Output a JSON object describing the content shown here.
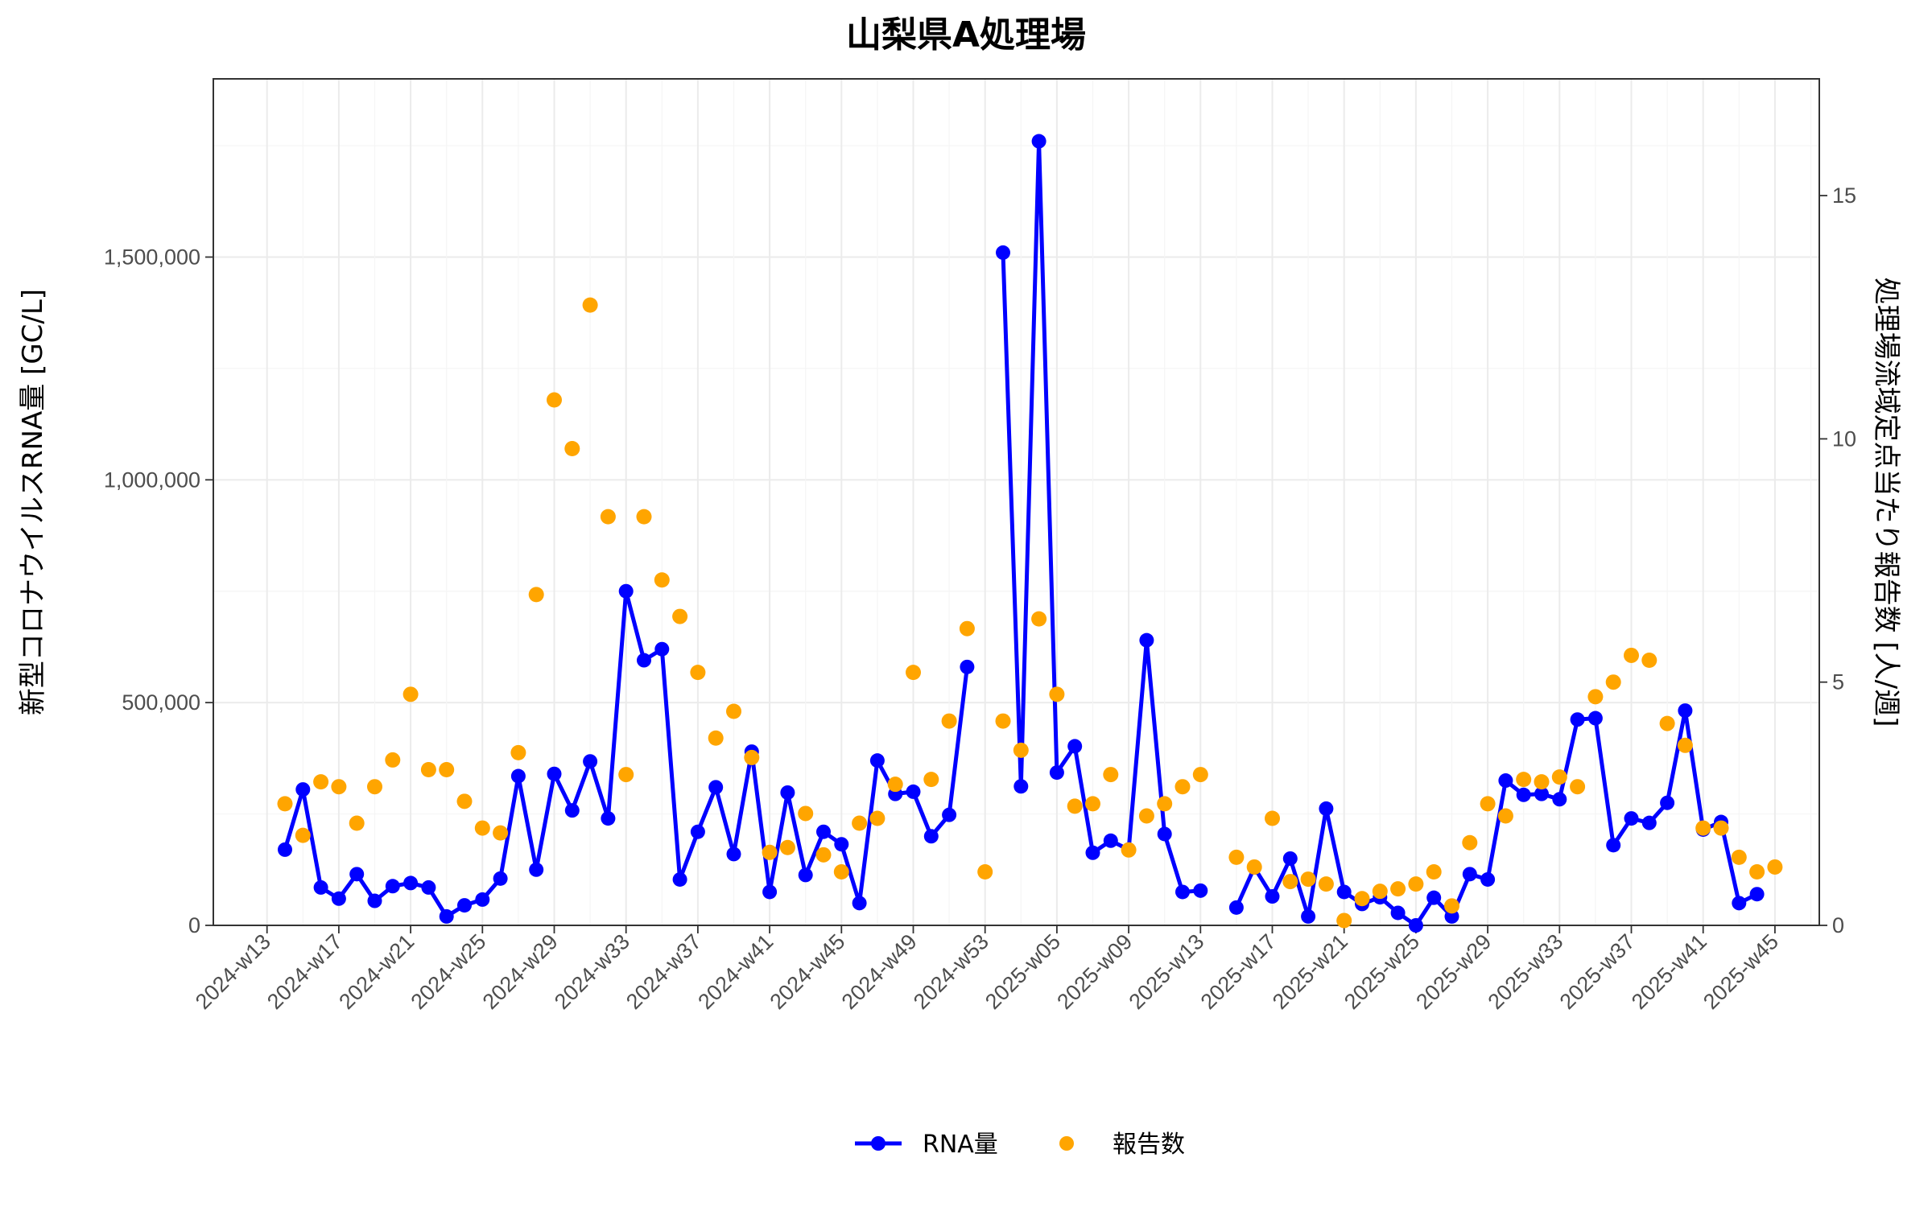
{
  "chart_data": {
    "type": "line",
    "title": "山梨県A処理場",
    "ylabel": "新型コロナウイルスRNA量 [GC/L]",
    "y2label": "処理場流域定点当たり報告数 [人/週]",
    "ylim": [
      0,
      1900000
    ],
    "y2lim": [
      0,
      17.4
    ],
    "y_ticks": [
      0,
      500000,
      1000000,
      1500000
    ],
    "y_tick_labels": [
      "0",
      "500,000",
      "1,000,000",
      "1,500,000"
    ],
    "y2_ticks": [
      0,
      5,
      10,
      15
    ],
    "y2_tick_labels": [
      "0",
      "5",
      "10",
      "15"
    ],
    "x_tick_labels": [
      "2024-w13",
      "2024-w17",
      "2024-w21",
      "2024-w25",
      "2024-w29",
      "2024-w33",
      "2024-w37",
      "2024-w41",
      "2024-w45",
      "2024-w49",
      "2024-w53",
      "2025-w05",
      "2025-w09",
      "2025-w13",
      "2025-w17",
      "2025-w21",
      "2025-w25",
      "2025-w29",
      "2025-w33",
      "2025-w37",
      "2025-w41",
      "2025-w45"
    ],
    "grid": true,
    "legend_position": "bottom",
    "categories": [
      "2024-w14",
      "2024-w15",
      "2024-w16",
      "2024-w17",
      "2024-w18",
      "2024-w19",
      "2024-w20",
      "2024-w21",
      "2024-w22",
      "2024-w23",
      "2024-w24",
      "2024-w25",
      "2024-w26",
      "2024-w27",
      "2024-w28",
      "2024-w29",
      "2024-w30",
      "2024-w31",
      "2024-w32",
      "2024-w33",
      "2024-w34",
      "2024-w35",
      "2024-w36",
      "2024-w37",
      "2024-w38",
      "2024-w39",
      "2024-w40",
      "2024-w41",
      "2024-w42",
      "2024-w43",
      "2024-w44",
      "2024-w45",
      "2024-w46",
      "2024-w47",
      "2024-w48",
      "2024-w49",
      "2024-w50",
      "2024-w51",
      "2024-w52",
      "2024-w53",
      "2025-w01",
      "2025-w02",
      "2025-w03",
      "2025-w04",
      "2025-w05",
      "2025-w06",
      "2025-w07",
      "2025-w08",
      "2025-w09",
      "2025-w10",
      "2025-w11",
      "2025-w12",
      "2025-w13",
      "2025-w14",
      "2025-w15",
      "2025-w16",
      "2025-w17",
      "2025-w18",
      "2025-w19",
      "2025-w20",
      "2025-w21",
      "2025-w22",
      "2025-w23",
      "2025-w24",
      "2025-w25",
      "2025-w26",
      "2025-w27",
      "2025-w28",
      "2025-w29",
      "2025-w30",
      "2025-w31",
      "2025-w32",
      "2025-w33",
      "2025-w34",
      "2025-w35",
      "2025-w36",
      "2025-w37",
      "2025-w38",
      "2025-w39",
      "2025-w40",
      "2025-w41",
      "2025-w42",
      "2025-w43",
      "2025-w44"
    ],
    "series": [
      {
        "name": "RNA量",
        "axis": "left",
        "color": "#0000ff",
        "values": [
          170000,
          305000,
          85000,
          60000,
          115000,
          55000,
          88000,
          95000,
          85000,
          20000,
          45000,
          58000,
          105000,
          335000,
          125000,
          340000,
          258000,
          368000,
          240000,
          750000,
          595000,
          620000,
          103000,
          210000,
          310000,
          160000,
          390000,
          75000,
          298000,
          113000,
          210000,
          182000,
          50000,
          370000,
          295000,
          300000,
          200000,
          248000,
          580000,
          null,
          1510000,
          312000,
          1760000,
          343000,
          402000,
          163000,
          190000,
          170000,
          640000,
          205000,
          75000,
          78000,
          null,
          40000,
          130000,
          65000,
          150000,
          20000,
          262000,
          75000,
          48000,
          63000,
          28000,
          0,
          62000,
          20000,
          115000,
          103000,
          325000,
          293000,
          295000,
          283000,
          462000,
          465000,
          180000,
          240000,
          230000,
          275000,
          482000,
          215000,
          232000,
          50000,
          70000,
          null
        ]
      },
      {
        "name": "報告数",
        "axis": "right",
        "color": "#ffa500",
        "values": [
          2.5,
          1.85,
          2.95,
          2.85,
          2.1,
          2.85,
          3.4,
          4.75,
          3.2,
          3.2,
          2.55,
          2.0,
          1.9,
          3.55,
          6.8,
          10.8,
          9.8,
          12.75,
          8.4,
          3.1,
          8.4,
          7.1,
          6.35,
          5.2,
          3.85,
          4.4,
          3.45,
          1.5,
          1.6,
          2.3,
          1.45,
          1.1,
          2.1,
          2.2,
          2.9,
          5.2,
          3.0,
          4.2,
          6.1,
          1.1,
          4.2,
          3.6,
          6.3,
          4.75,
          2.45,
          2.5,
          3.1,
          1.55,
          2.25,
          2.5,
          2.85,
          3.1,
          null,
          1.4,
          1.2,
          2.2,
          0.9,
          0.95,
          0.85,
          0.1,
          0.55,
          0.7,
          0.75,
          0.85,
          1.1,
          0.4,
          1.7,
          2.5,
          2.25,
          3.0,
          2.95,
          3.05,
          2.85,
          4.7,
          5.0,
          5.55,
          5.45,
          4.15,
          3.7,
          2.0,
          2.0,
          1.4,
          1.1,
          1.2
        ]
      }
    ]
  }
}
